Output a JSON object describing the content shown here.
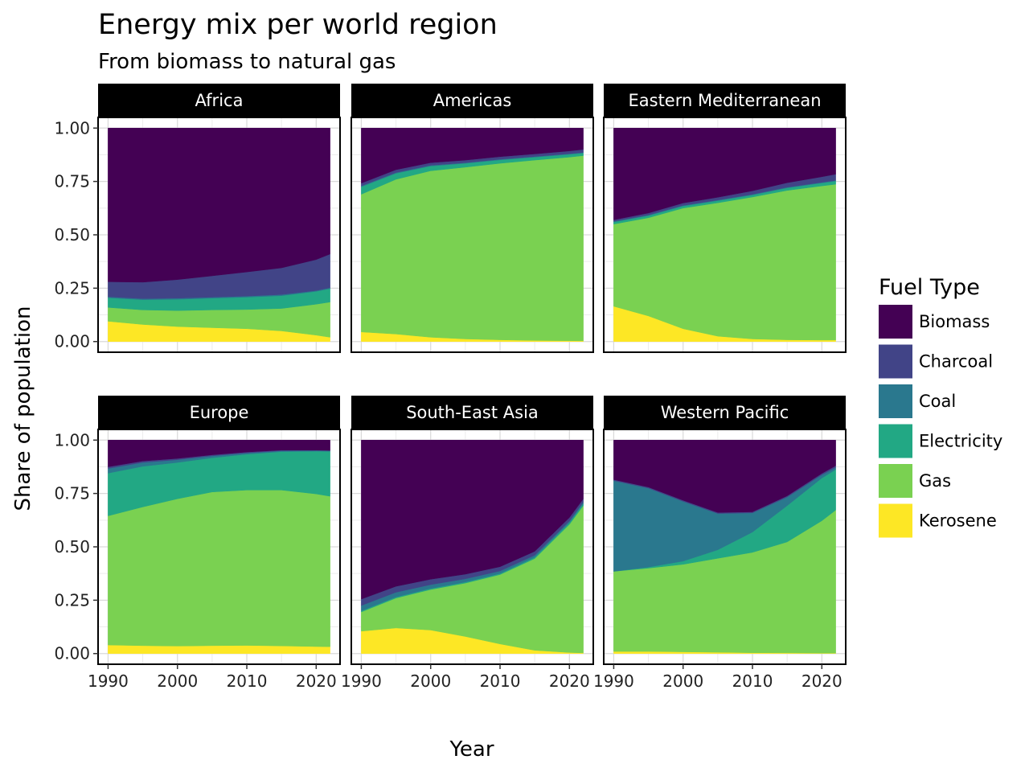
{
  "title": "Energy mix per world region",
  "subtitle": "From biomass to natural gas",
  "colors": {
    "Biomass": "#440154",
    "Charcoal": "#414487",
    "Coal": "#2a788e",
    "Electricity": "#22a884",
    "Gas": "#7ad151",
    "Kerosene": "#fde725"
  },
  "chart_data": {
    "type": "area",
    "stacked": true,
    "facet_by": "region",
    "xlabel": "Year",
    "ylabel": "Share of population",
    "xlim": [
      1990,
      2022
    ],
    "ylim": [
      0,
      1
    ],
    "x_ticks": [
      1990,
      2000,
      2010,
      2020
    ],
    "y_ticks": [
      0,
      0.25,
      0.5,
      0.75,
      1
    ],
    "y_tick_labels": [
      "0.00",
      "0.25",
      "0.50",
      "0.75",
      "1.00"
    ],
    "grid": true,
    "legend": {
      "title": "Fuel Type",
      "position": "right",
      "entries": [
        "Biomass",
        "Charcoal",
        "Coal",
        "Electricity",
        "Gas",
        "Kerosene"
      ]
    },
    "x": [
      1990,
      1995,
      2000,
      2005,
      2010,
      2015,
      2020,
      2022
    ],
    "panels": [
      {
        "region": "Africa",
        "series": [
          {
            "name": "Kerosene",
            "values": [
              0.095,
              0.08,
              0.07,
              0.065,
              0.06,
              0.05,
              0.03,
              0.02
            ]
          },
          {
            "name": "Gas",
            "values": [
              0.065,
              0.068,
              0.075,
              0.083,
              0.09,
              0.105,
              0.145,
              0.165
            ]
          },
          {
            "name": "Electricity",
            "values": [
              0.045,
              0.048,
              0.053,
              0.055,
              0.058,
              0.06,
              0.06,
              0.063
            ]
          },
          {
            "name": "Coal",
            "values": [
              0.005,
              0.005,
              0.005,
              0.005,
              0.005,
              0.005,
              0.004,
              0.004
            ]
          },
          {
            "name": "Charcoal",
            "values": [
              0.07,
              0.077,
              0.087,
              0.1,
              0.113,
              0.125,
              0.145,
              0.158
            ]
          },
          {
            "name": "Biomass",
            "values": [
              0.72,
              0.722,
              0.71,
              0.692,
              0.674,
              0.655,
              0.616,
              0.59
            ]
          }
        ]
      },
      {
        "region": "Americas",
        "series": [
          {
            "name": "Kerosene",
            "values": [
              0.045,
              0.035,
              0.02,
              0.012,
              0.008,
              0.005,
              0.004,
              0.003
            ]
          },
          {
            "name": "Gas",
            "values": [
              0.645,
              0.725,
              0.78,
              0.805,
              0.827,
              0.845,
              0.86,
              0.868
            ]
          },
          {
            "name": "Electricity",
            "values": [
              0.035,
              0.028,
              0.022,
              0.018,
              0.016,
              0.014,
              0.013,
              0.012
            ]
          },
          {
            "name": "Coal",
            "values": [
              0.004,
              0.004,
              0.004,
              0.003,
              0.003,
              0.003,
              0.003,
              0.003
            ]
          },
          {
            "name": "Charcoal",
            "values": [
              0.013,
              0.013,
              0.012,
              0.012,
              0.012,
              0.012,
              0.013,
              0.014
            ]
          },
          {
            "name": "Biomass",
            "values": [
              0.258,
              0.195,
              0.162,
              0.15,
              0.134,
              0.121,
              0.107,
              0.1
            ]
          }
        ]
      },
      {
        "region": "Eastern Mediterranean",
        "series": [
          {
            "name": "Kerosene",
            "values": [
              0.165,
              0.12,
              0.06,
              0.025,
              0.012,
              0.008,
              0.007,
              0.007
            ]
          },
          {
            "name": "Gas",
            "values": [
              0.385,
              0.46,
              0.565,
              0.625,
              0.665,
              0.7,
              0.722,
              0.73
            ]
          },
          {
            "name": "Electricity",
            "values": [
              0.01,
              0.01,
              0.01,
              0.01,
              0.01,
              0.012,
              0.014,
              0.015
            ]
          },
          {
            "name": "Coal",
            "values": [
              0.003,
              0.003,
              0.003,
              0.003,
              0.003,
              0.003,
              0.003,
              0.003
            ]
          },
          {
            "name": "Charcoal",
            "values": [
              0.007,
              0.009,
              0.011,
              0.013,
              0.016,
              0.021,
              0.026,
              0.029
            ]
          },
          {
            "name": "Biomass",
            "values": [
              0.43,
              0.398,
              0.351,
              0.324,
              0.294,
              0.256,
              0.228,
              0.216
            ]
          }
        ]
      },
      {
        "region": "Europe",
        "series": [
          {
            "name": "Kerosene",
            "values": [
              0.04,
              0.037,
              0.035,
              0.037,
              0.038,
              0.036,
              0.033,
              0.032
            ]
          },
          {
            "name": "Gas",
            "values": [
              0.605,
              0.65,
              0.69,
              0.72,
              0.728,
              0.73,
              0.715,
              0.705
            ]
          },
          {
            "name": "Electricity",
            "values": [
              0.2,
              0.19,
              0.17,
              0.16,
              0.168,
              0.18,
              0.2,
              0.21
            ]
          },
          {
            "name": "Coal",
            "values": [
              0.022,
              0.018,
              0.013,
              0.009,
              0.006,
              0.004,
              0.003,
              0.003
            ]
          },
          {
            "name": "Charcoal",
            "values": [
              0.008,
              0.007,
              0.006,
              0.005,
              0.004,
              0.003,
              0.002,
              0.002
            ]
          },
          {
            "name": "Biomass",
            "values": [
              0.125,
              0.098,
              0.086,
              0.069,
              0.056,
              0.047,
              0.047,
              0.048
            ]
          }
        ]
      },
      {
        "region": "South-East Asia",
        "series": [
          {
            "name": "Kerosene",
            "values": [
              0.105,
              0.12,
              0.11,
              0.08,
              0.045,
              0.015,
              0.005,
              0.003
            ]
          },
          {
            "name": "Gas",
            "values": [
              0.09,
              0.14,
              0.19,
              0.25,
              0.325,
              0.43,
              0.6,
              0.69
            ]
          },
          {
            "name": "Electricity",
            "values": [
              0.005,
              0.005,
              0.005,
              0.005,
              0.005,
              0.006,
              0.008,
              0.009
            ]
          },
          {
            "name": "Coal",
            "values": [
              0.025,
              0.022,
              0.018,
              0.015,
              0.012,
              0.01,
              0.008,
              0.008
            ]
          },
          {
            "name": "Charcoal",
            "values": [
              0.03,
              0.028,
              0.025,
              0.022,
              0.02,
              0.018,
              0.016,
              0.015
            ]
          },
          {
            "name": "Biomass",
            "values": [
              0.745,
              0.685,
              0.652,
              0.628,
              0.593,
              0.521,
              0.363,
              0.275
            ]
          }
        ]
      },
      {
        "region": "Western Pacific",
        "series": [
          {
            "name": "Kerosene",
            "values": [
              0.01,
              0.01,
              0.008,
              0.006,
              0.004,
              0.003,
              0.002,
              0.002
            ]
          },
          {
            "name": "Gas",
            "values": [
              0.375,
              0.39,
              0.41,
              0.44,
              0.47,
              0.52,
              0.62,
              0.67
            ]
          },
          {
            "name": "Electricity",
            "values": [
              0.0,
              0.005,
              0.015,
              0.04,
              0.095,
              0.17,
              0.2,
              0.19
            ]
          },
          {
            "name": "Coal",
            "values": [
              0.425,
              0.37,
              0.28,
              0.17,
              0.09,
              0.04,
              0.015,
              0.01
            ]
          },
          {
            "name": "Charcoal",
            "values": [
              0.005,
              0.005,
              0.005,
              0.005,
              0.005,
              0.006,
              0.007,
              0.008
            ]
          },
          {
            "name": "Biomass",
            "values": [
              0.185,
              0.22,
              0.282,
              0.339,
              0.336,
              0.261,
              0.156,
              0.12
            ]
          }
        ]
      }
    ]
  }
}
